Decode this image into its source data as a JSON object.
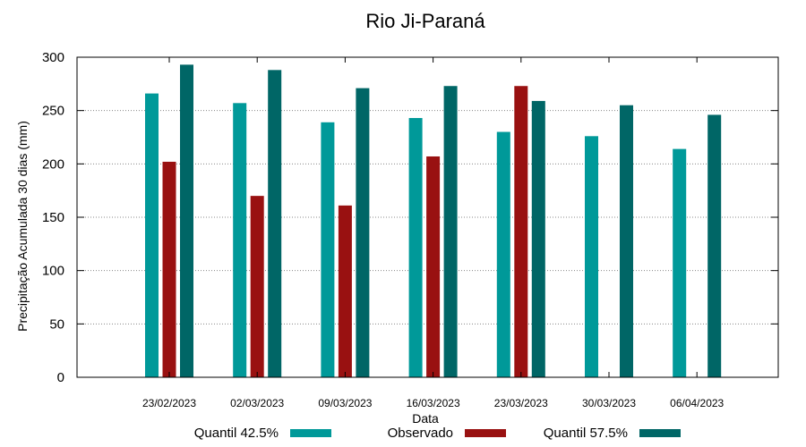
{
  "chart_data": {
    "type": "bar",
    "title": "Rio Ji-Paraná",
    "xlabel": "Data",
    "ylabel": "Precipitação Acumulada 30 dias (mm)",
    "ylim": [
      0,
      300
    ],
    "yticks": [
      0,
      50,
      100,
      150,
      200,
      250,
      300
    ],
    "grid": true,
    "legend_position": "bottom",
    "categories": [
      "23/02/2023",
      "02/03/2023",
      "09/03/2023",
      "16/03/2023",
      "23/03/2023",
      "30/03/2023",
      "06/04/2023"
    ],
    "series": [
      {
        "name": "Quantil 42.5%",
        "color": "#009999",
        "values": [
          266,
          257,
          239,
          243,
          230,
          226,
          214
        ]
      },
      {
        "name": "Observado",
        "color": "#991111",
        "values": [
          202,
          170,
          161,
          207,
          273,
          null,
          null
        ]
      },
      {
        "name": "Quantil 57.5%",
        "color": "#006666",
        "values": [
          293,
          288,
          271,
          273,
          259,
          255,
          246
        ]
      }
    ]
  }
}
